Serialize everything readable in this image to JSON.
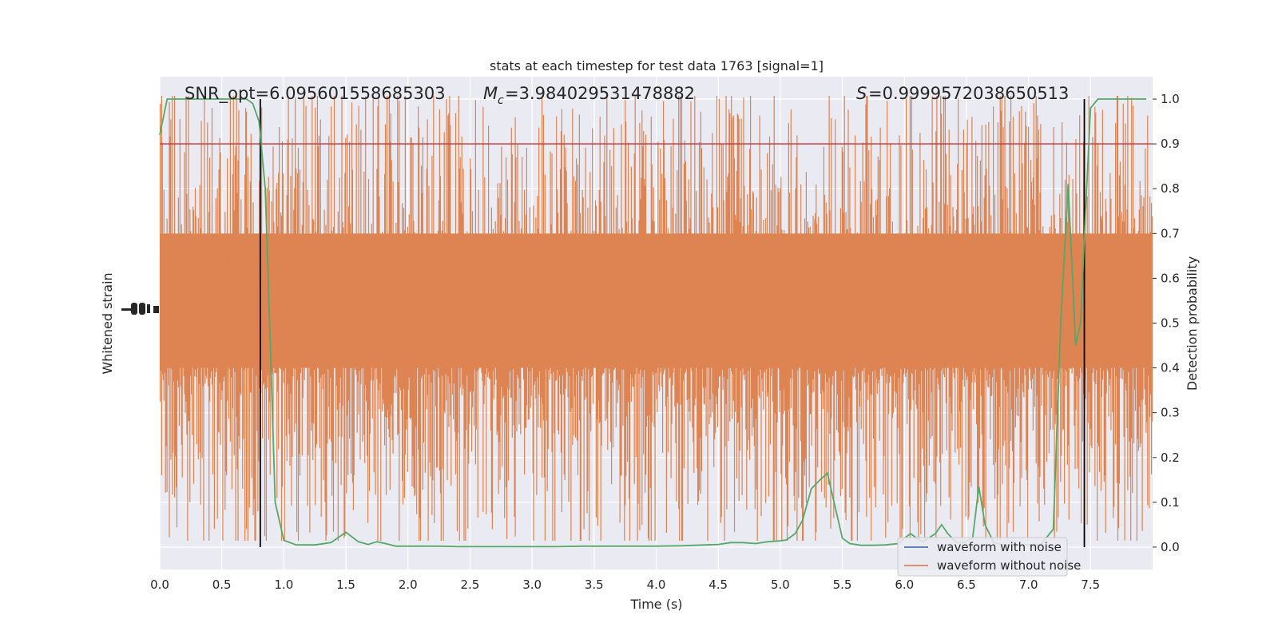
{
  "chart_data": {
    "type": "line",
    "title": "stats at each timestep for test data 1763 [signal=1]",
    "xlabel": "Time (s)",
    "ylabel_left": "Whitened strain",
    "ylabel_right": "Detection probability",
    "xlim": [
      0,
      8
    ],
    "ylim_right": [
      -0.05,
      1.05
    ],
    "x_ticks": [
      "0.0",
      "0.5",
      "1.0",
      "1.5",
      "2.0",
      "2.5",
      "3.0",
      "3.5",
      "4.0",
      "4.5",
      "5.0",
      "5.5",
      "6.0",
      "6.5",
      "7.0",
      "7.5"
    ],
    "y_ticks_right": [
      "0.0",
      "0.1",
      "0.2",
      "0.3",
      "0.4",
      "0.5",
      "0.6",
      "0.7",
      "0.8",
      "0.9",
      "1.0"
    ],
    "grid": true,
    "legend_position": "lower-right",
    "annotations": {
      "snr": "SNR_opt=6.095601558685303",
      "mc_value": "=3.984029531478882",
      "s_value": "=0.9999572038650513"
    },
    "threshold": 0.9,
    "vertical_markers": [
      0.81,
      7.45
    ],
    "series": [
      {
        "name": "waveform with noise",
        "color": "#4c72b0"
      },
      {
        "name": "waveform without noise",
        "color": "#dd8452"
      }
    ],
    "detection_probability": {
      "color": "#55a868",
      "x": [
        0.0,
        0.06,
        0.12,
        0.2,
        0.3,
        0.4,
        0.5,
        0.6,
        0.7,
        0.75,
        0.8,
        0.85,
        0.88,
        0.93,
        1.0,
        1.1,
        1.25,
        1.38,
        1.5,
        1.6,
        1.68,
        1.75,
        1.82,
        1.9,
        2.0,
        2.1,
        2.25,
        2.4,
        2.6,
        2.8,
        3.0,
        3.2,
        3.4,
        3.6,
        3.8,
        4.0,
        4.2,
        4.4,
        4.5,
        4.6,
        4.7,
        4.8,
        4.9,
        5.0,
        5.05,
        5.12,
        5.18,
        5.25,
        5.32,
        5.38,
        5.45,
        5.5,
        5.56,
        5.65,
        5.75,
        5.85,
        5.95,
        6.0,
        6.05,
        6.1,
        6.15,
        6.25,
        6.3,
        6.35,
        6.42,
        6.48,
        6.55,
        6.6,
        6.65,
        6.72,
        6.8,
        6.9,
        7.0,
        7.1,
        7.2,
        7.26,
        7.32,
        7.38,
        7.42,
        7.46,
        7.5,
        7.56,
        7.62,
        7.7,
        7.8,
        7.95
      ],
      "y": [
        0.92,
        1.0,
        1.0,
        1.0,
        1.0,
        1.0,
        1.0,
        1.0,
        1.0,
        0.99,
        0.95,
        0.8,
        0.55,
        0.1,
        0.015,
        0.005,
        0.005,
        0.01,
        0.033,
        0.012,
        0.006,
        0.012,
        0.008,
        0.002,
        0.002,
        0.002,
        0.002,
        0.001,
        0.001,
        0.001,
        0.001,
        0.001,
        0.002,
        0.002,
        0.002,
        0.002,
        0.003,
        0.005,
        0.006,
        0.01,
        0.01,
        0.008,
        0.012,
        0.014,
        0.016,
        0.03,
        0.06,
        0.13,
        0.15,
        0.165,
        0.08,
        0.02,
        0.008,
        0.004,
        0.004,
        0.005,
        0.008,
        0.02,
        0.03,
        0.02,
        0.012,
        0.03,
        0.05,
        0.03,
        0.01,
        0.01,
        0.02,
        0.135,
        0.05,
        0.01,
        0.005,
        0.005,
        0.005,
        0.006,
        0.04,
        0.5,
        0.81,
        0.45,
        0.5,
        0.75,
        0.98,
        1.0,
        1.0,
        1.0,
        1.0,
        1.0
      ]
    }
  }
}
